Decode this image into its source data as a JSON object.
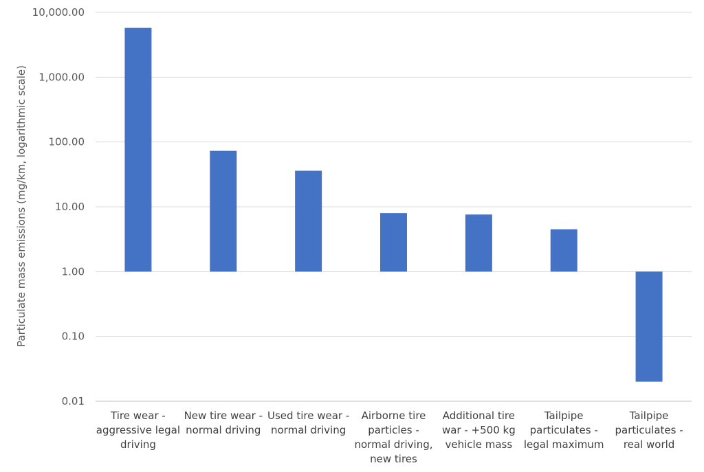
{
  "chart_data": {
    "type": "bar",
    "title": "",
    "xlabel": "",
    "ylabel": "Particulate mass emissions (mg/km, logarithmic scale)",
    "yscale": "log",
    "ylim": [
      0.01,
      10000
    ],
    "baseline": 1,
    "grid": true,
    "legend": "none",
    "yticks": [
      "10,000.00",
      "1,000.00",
      "100.00",
      "10.00",
      "1.00",
      "0.10",
      "0.01"
    ],
    "categories": [
      [
        "Tire wear -",
        "aggressive legal",
        "driving"
      ],
      [
        "New tire wear -",
        "normal driving"
      ],
      [
        "Used tire wear -",
        "normal driving"
      ],
      [
        "Airborne tire",
        "particles -",
        "normal driving,",
        "new tires"
      ],
      [
        "Additional tire",
        "war - +500 kg",
        "vehicle mass"
      ],
      [
        "Tailpipe",
        "particulates -",
        "legal maximum"
      ],
      [
        "Tailpipe",
        "particulates -",
        "real world"
      ]
    ],
    "values": [
      5760,
      73,
      36,
      8,
      7.6,
      4.5,
      0.02
    ],
    "colors": {
      "bar": "#4472C4",
      "grid": "#d9d9d9",
      "axis": "#bfbfbf"
    }
  }
}
